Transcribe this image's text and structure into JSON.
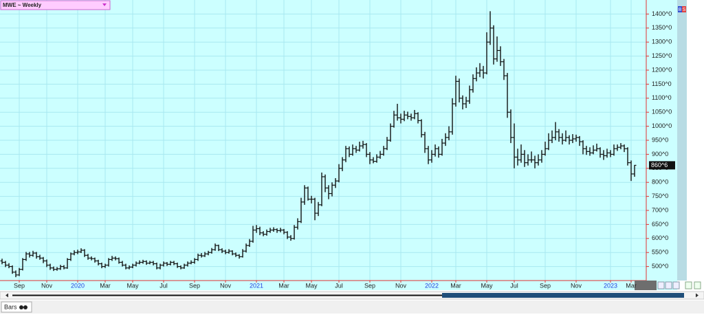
{
  "chart_data": {
    "type": "ohlc",
    "title": "MWE ~ Weekly",
    "color": "#111111",
    "background": "#ccffff",
    "grid": true,
    "last_price": {
      "value": 860.75,
      "label": "860^6"
    },
    "ylim": [
      450,
      1450
    ],
    "yticks": [
      {
        "value": 500,
        "label": "500^0"
      },
      {
        "value": 550,
        "label": "550^0"
      },
      {
        "value": 600,
        "label": "600^0"
      },
      {
        "value": 650,
        "label": "650^0"
      },
      {
        "value": 700,
        "label": "700^0"
      },
      {
        "value": 750,
        "label": "750^0"
      },
      {
        "value": 800,
        "label": "800^0"
      },
      {
        "value": 850,
        "label": "850^0"
      },
      {
        "value": 900,
        "label": "900^0"
      },
      {
        "value": 950,
        "label": "950^0"
      },
      {
        "value": 1000,
        "label": "1000^0"
      },
      {
        "value": 1050,
        "label": "1050^0"
      },
      {
        "value": 1100,
        "label": "1100^0"
      },
      {
        "value": 1150,
        "label": "1150^0"
      },
      {
        "value": 1200,
        "label": "1200^0"
      },
      {
        "value": 1250,
        "label": "1250^0"
      },
      {
        "value": 1300,
        "label": "1300^0"
      },
      {
        "value": 1350,
        "label": "1350^0"
      },
      {
        "value": 1400,
        "label": "1400^0"
      }
    ],
    "xlim": [
      -0.6,
      187.4
    ],
    "xticks": [
      {
        "value": 5,
        "label": "Sep"
      },
      {
        "value": 13,
        "label": "Nov"
      },
      {
        "value": 22,
        "label": "2020"
      },
      {
        "value": 30,
        "label": "Mar"
      },
      {
        "value": 38,
        "label": "May"
      },
      {
        "value": 47,
        "label": "Jul"
      },
      {
        "value": 56,
        "label": "Sep"
      },
      {
        "value": 65,
        "label": "Nov"
      },
      {
        "value": 74,
        "label": "2021"
      },
      {
        "value": 82,
        "label": "Mar"
      },
      {
        "value": 90,
        "label": "May"
      },
      {
        "value": 98,
        "label": "Jul"
      },
      {
        "value": 107,
        "label": "Sep"
      },
      {
        "value": 116,
        "label": "Nov"
      },
      {
        "value": 125,
        "label": "2022"
      },
      {
        "value": 132,
        "label": "Mar"
      },
      {
        "value": 141,
        "label": "May"
      },
      {
        "value": 149,
        "label": "Jul"
      },
      {
        "value": 158,
        "label": "Sep"
      },
      {
        "value": 167,
        "label": "Nov"
      },
      {
        "value": 177,
        "label": "2023"
      },
      {
        "value": 183,
        "label": "Mar"
      }
    ],
    "bars": [
      [
        520,
        528,
        508,
        515
      ],
      [
        515,
        520,
        498,
        505
      ],
      [
        505,
        512,
        494,
        500
      ],
      [
        500,
        504,
        474,
        480
      ],
      [
        480,
        486,
        462,
        470
      ],
      [
        470,
        495,
        466,
        490
      ],
      [
        490,
        530,
        486,
        525
      ],
      [
        525,
        552,
        520,
        545
      ],
      [
        545,
        552,
        532,
        540
      ],
      [
        540,
        556,
        535,
        548
      ],
      [
        548,
        552,
        528,
        535
      ],
      [
        535,
        542,
        524,
        530
      ],
      [
        530,
        534,
        512,
        520
      ],
      [
        520,
        525,
        498,
        505
      ],
      [
        505,
        510,
        488,
        495
      ],
      [
        495,
        500,
        484,
        490
      ],
      [
        490,
        498,
        485,
        492
      ],
      [
        492,
        506,
        488,
        500
      ],
      [
        500,
        505,
        490,
        495
      ],
      [
        495,
        530,
        492,
        525
      ],
      [
        525,
        550,
        520,
        545
      ],
      [
        545,
        558,
        540,
        550
      ],
      [
        550,
        560,
        544,
        552
      ],
      [
        552,
        565,
        548,
        558
      ],
      [
        558,
        562,
        534,
        540
      ],
      [
        540,
        545,
        524,
        530
      ],
      [
        530,
        536,
        522,
        528
      ],
      [
        528,
        532,
        514,
        520
      ],
      [
        520,
        524,
        504,
        510
      ],
      [
        510,
        514,
        494,
        500
      ],
      [
        500,
        510,
        495,
        505
      ],
      [
        505,
        530,
        500,
        525
      ],
      [
        525,
        538,
        520,
        530
      ],
      [
        530,
        536,
        522,
        528
      ],
      [
        528,
        532,
        510,
        515
      ],
      [
        515,
        520,
        500,
        505
      ],
      [
        505,
        510,
        490,
        495
      ],
      [
        495,
        504,
        490,
        498
      ],
      [
        498,
        510,
        494,
        505
      ],
      [
        505,
        518,
        500,
        512
      ],
      [
        512,
        522,
        508,
        515
      ],
      [
        515,
        524,
        510,
        518
      ],
      [
        518,
        522,
        506,
        512
      ],
      [
        512,
        520,
        508,
        515
      ],
      [
        515,
        520,
        504,
        510
      ],
      [
        510,
        514,
        490,
        495
      ],
      [
        495,
        510,
        490,
        505
      ],
      [
        505,
        518,
        500,
        512
      ],
      [
        512,
        516,
        502,
        508
      ],
      [
        508,
        520,
        504,
        515
      ],
      [
        515,
        520,
        505,
        510
      ],
      [
        510,
        514,
        495,
        500
      ],
      [
        500,
        504,
        490,
        495
      ],
      [
        495,
        510,
        492,
        505
      ],
      [
        505,
        518,
        500,
        512
      ],
      [
        512,
        522,
        508,
        515
      ],
      [
        515,
        530,
        510,
        525
      ],
      [
        525,
        546,
        520,
        540
      ],
      [
        540,
        548,
        532,
        538
      ],
      [
        538,
        552,
        534,
        545
      ],
      [
        545,
        556,
        540,
        550
      ],
      [
        550,
        566,
        546,
        560
      ],
      [
        560,
        582,
        556,
        575
      ],
      [
        575,
        578,
        555,
        560
      ],
      [
        560,
        565,
        548,
        555
      ],
      [
        555,
        560,
        544,
        550
      ],
      [
        550,
        562,
        546,
        555
      ],
      [
        555,
        558,
        540,
        545
      ],
      [
        545,
        550,
        534,
        540
      ],
      [
        540,
        544,
        528,
        535
      ],
      [
        535,
        562,
        532,
        555
      ],
      [
        555,
        582,
        550,
        575
      ],
      [
        575,
        598,
        570,
        590
      ],
      [
        590,
        645,
        585,
        630
      ],
      [
        630,
        648,
        620,
        635
      ],
      [
        635,
        642,
        612,
        620
      ],
      [
        620,
        626,
        608,
        615
      ],
      [
        615,
        632,
        610,
        625
      ],
      [
        625,
        638,
        620,
        630
      ],
      [
        630,
        640,
        624,
        632
      ],
      [
        632,
        636,
        620,
        628
      ],
      [
        628,
        638,
        622,
        630
      ],
      [
        630,
        634,
        615,
        622
      ],
      [
        622,
        626,
        598,
        605
      ],
      [
        605,
        612,
        592,
        600
      ],
      [
        600,
        648,
        596,
        640
      ],
      [
        640,
        672,
        632,
        660
      ],
      [
        660,
        745,
        655,
        730
      ],
      [
        730,
        790,
        720,
        780
      ],
      [
        780,
        785,
        735,
        740
      ],
      [
        740,
        752,
        725,
        740
      ],
      [
        740,
        745,
        665,
        690
      ],
      [
        690,
        730,
        680,
        720
      ],
      [
        720,
        835,
        715,
        820
      ],
      [
        820,
        828,
        765,
        780
      ],
      [
        780,
        790,
        740,
        760
      ],
      [
        760,
        800,
        750,
        790
      ],
      [
        790,
        815,
        780,
        805
      ],
      [
        805,
        865,
        800,
        850
      ],
      [
        850,
        890,
        840,
        880
      ],
      [
        880,
        930,
        872,
        920
      ],
      [
        920,
        928,
        890,
        900
      ],
      [
        900,
        935,
        895,
        920
      ],
      [
        920,
        930,
        905,
        915
      ],
      [
        915,
        945,
        910,
        930
      ],
      [
        930,
        948,
        920,
        935
      ],
      [
        935,
        940,
        890,
        900
      ],
      [
        900,
        908,
        865,
        880
      ],
      [
        880,
        890,
        868,
        875
      ],
      [
        875,
        900,
        870,
        890
      ],
      [
        890,
        912,
        884,
        900
      ],
      [
        900,
        930,
        895,
        920
      ],
      [
        920,
        962,
        915,
        950
      ],
      [
        950,
        1010,
        945,
        1000
      ],
      [
        1000,
        1055,
        995,
        1040
      ],
      [
        1040,
        1080,
        1020,
        1030
      ],
      [
        1030,
        1045,
        1010,
        1025
      ],
      [
        1025,
        1055,
        1018,
        1040
      ],
      [
        1040,
        1052,
        1025,
        1035
      ],
      [
        1035,
        1045,
        1020,
        1030
      ],
      [
        1030,
        1058,
        1025,
        1045
      ],
      [
        1045,
        1050,
        1010,
        1020
      ],
      [
        1020,
        1025,
        960,
        970
      ],
      [
        970,
        980,
        905,
        920
      ],
      [
        920,
        930,
        865,
        880
      ],
      [
        880,
        915,
        870,
        900
      ],
      [
        900,
        935,
        892,
        920
      ],
      [
        920,
        928,
        888,
        900
      ],
      [
        900,
        955,
        895,
        940
      ],
      [
        940,
        975,
        930,
        960
      ],
      [
        960,
        1000,
        950,
        980
      ],
      [
        980,
        1100,
        970,
        1080
      ],
      [
        1080,
        1180,
        1070,
        1160
      ],
      [
        1160,
        1170,
        1085,
        1100
      ],
      [
        1100,
        1110,
        1060,
        1080
      ],
      [
        1080,
        1105,
        1065,
        1090
      ],
      [
        1090,
        1145,
        1080,
        1130
      ],
      [
        1130,
        1185,
        1120,
        1170
      ],
      [
        1170,
        1210,
        1160,
        1190
      ],
      [
        1190,
        1225,
        1175,
        1200
      ],
      [
        1200,
        1215,
        1170,
        1190
      ],
      [
        1190,
        1335,
        1185,
        1300
      ],
      [
        1300,
        1410,
        1290,
        1350
      ],
      [
        1350,
        1360,
        1220,
        1240
      ],
      [
        1240,
        1320,
        1230,
        1270
      ],
      [
        1270,
        1285,
        1215,
        1230
      ],
      [
        1230,
        1240,
        1165,
        1180
      ],
      [
        1180,
        1190,
        1030,
        1050
      ],
      [
        1050,
        1060,
        940,
        960
      ],
      [
        960,
        1010,
        850,
        890
      ],
      [
        890,
        920,
        860,
        880
      ],
      [
        880,
        935,
        870,
        900
      ],
      [
        900,
        915,
        855,
        870
      ],
      [
        870,
        900,
        860,
        880
      ],
      [
        880,
        910,
        870,
        880
      ],
      [
        880,
        895,
        850,
        870
      ],
      [
        870,
        900,
        860,
        880
      ],
      [
        880,
        915,
        870,
        900
      ],
      [
        900,
        945,
        895,
        920
      ],
      [
        920,
        975,
        915,
        950
      ],
      [
        950,
        985,
        940,
        960
      ],
      [
        960,
        1015,
        950,
        980
      ],
      [
        980,
        990,
        945,
        960
      ],
      [
        960,
        975,
        935,
        950
      ],
      [
        950,
        985,
        945,
        960
      ],
      [
        960,
        968,
        935,
        950
      ],
      [
        950,
        972,
        940,
        955
      ],
      [
        955,
        970,
        945,
        960
      ],
      [
        960,
        965,
        930,
        945
      ],
      [
        945,
        950,
        900,
        920
      ],
      [
        920,
        930,
        898,
        910
      ],
      [
        910,
        925,
        895,
        905
      ],
      [
        905,
        932,
        900,
        915
      ],
      [
        915,
        938,
        910,
        920
      ],
      [
        920,
        925,
        888,
        900
      ],
      [
        900,
        915,
        880,
        895
      ],
      [
        895,
        920,
        888,
        905
      ],
      [
        905,
        915,
        890,
        900
      ],
      [
        900,
        935,
        895,
        920
      ],
      [
        920,
        935,
        912,
        925
      ],
      [
        925,
        940,
        918,
        930
      ],
      [
        930,
        935,
        908,
        920
      ],
      [
        920,
        925,
        860,
        870
      ],
      [
        870,
        878,
        805,
        830
      ],
      [
        830,
        862,
        820,
        860.75
      ]
    ],
    "side_buttons": [
      "B",
      "S"
    ],
    "tab": "Bars"
  }
}
